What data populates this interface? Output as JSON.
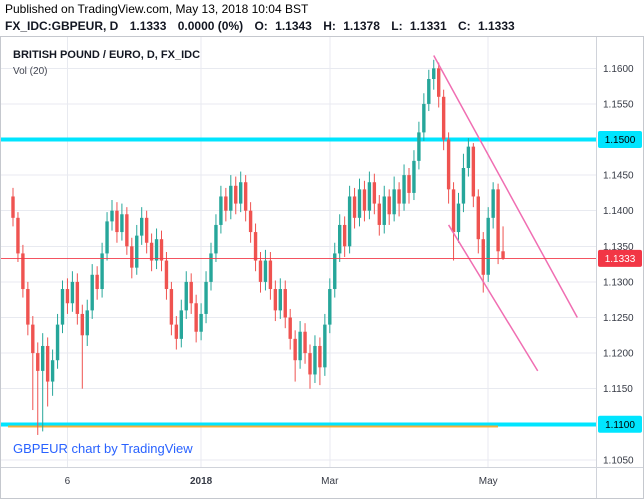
{
  "header": {
    "published": "Published on TradingView.com, May 13, 2018 10:04 BST",
    "symbol_interval": "FX_IDC:GBPEUR, D",
    "last_price": "1.1333",
    "change": "0.0000 (0%)",
    "ohlc": {
      "o_label": "O:",
      "o": "1.1343",
      "h_label": "H:",
      "h": "1.1378",
      "l_label": "L:",
      "l": "1.1331",
      "c_label": "C:",
      "c": "1.1333"
    }
  },
  "legend": {
    "title": "BRITISH POUND / EURO, D, FX_IDC",
    "vol": "Vol (20)"
  },
  "attribution": {
    "text": "GBPEUR chart by TradingView"
  },
  "chart_data": {
    "type": "candlestick",
    "title": "BRITISH POUND / EURO, D, FX_IDC",
    "symbol": "GBPEUR",
    "interval": "D",
    "ylim": [
      1.104,
      1.1644
    ],
    "colors": {
      "up": "#26a69a",
      "down": "#ef5350",
      "grid": "#e8eaf0",
      "axis_line": "#d0d3da",
      "text": "#363a45",
      "band": "#00E5FF",
      "orange_line": "#ffa726",
      "channel": "#f06eb2",
      "price_line": "#f23645",
      "badge_red_bg": "#f23645",
      "badge_red_fg": "#ffffff",
      "badge_cyan_bg": "#00E5FF",
      "badge_cyan_fg": "#000000"
    },
    "y_axis": {
      "ticks": [
        {
          "label": "1.1600",
          "price": 1.16
        },
        {
          "label": "1.1550",
          "price": 1.155
        },
        {
          "label": "1.1500",
          "price": 1.15
        },
        {
          "label": "1.1450",
          "price": 1.145
        },
        {
          "label": "1.1400",
          "price": 1.14
        },
        {
          "label": "1.1350",
          "price": 1.135
        },
        {
          "label": "1.1300",
          "price": 1.13
        },
        {
          "label": "1.1250",
          "price": 1.125
        },
        {
          "label": "1.1200",
          "price": 1.12
        },
        {
          "label": "1.1150",
          "price": 1.115
        },
        {
          "label": "1.1100",
          "price": 1.11
        },
        {
          "label": "1.1050",
          "price": 1.105
        }
      ],
      "badges": [
        {
          "label": "1.1500",
          "price": 1.15,
          "bg": "#00E5FF",
          "fg": "#000000"
        },
        {
          "label": "1.1333",
          "price": 1.1333,
          "bg": "#f23645",
          "fg": "#ffffff"
        },
        {
          "label": "1.1100",
          "price": 1.11,
          "bg": "#00E5FF",
          "fg": "#000000"
        }
      ]
    },
    "x_axis": {
      "ticks": [
        {
          "label": "6",
          "i": 11,
          "bold": false
        },
        {
          "label": "2018",
          "i": 38,
          "bold": true
        },
        {
          "label": "Mar",
          "i": 64,
          "bold": false
        },
        {
          "label": "May",
          "i": 96,
          "bold": false
        }
      ]
    },
    "levels": [
      {
        "name": "resistance-band",
        "price": 1.15,
        "color": "#00E5FF",
        "width": 4,
        "opacity": 1
      },
      {
        "name": "support-band",
        "price": 1.11,
        "color": "#00E5FF",
        "width": 4,
        "opacity": 1
      },
      {
        "name": "orange-support-line",
        "price": 1.1097,
        "color": "#ffa726",
        "width": 2,
        "opacity": 0.9,
        "i1": -1,
        "i2": 98
      }
    ],
    "trend_lines": [
      {
        "name": "channel-upper",
        "i1": 85,
        "p1": 1.1618,
        "i2": 114,
        "p2": 1.125
      },
      {
        "name": "channel-lower",
        "i1": 88,
        "p1": 1.138,
        "i2": 106,
        "p2": 1.1175
      }
    ],
    "price_line": {
      "price": 1.1333
    },
    "candles": [
      [
        1.142,
        1.1432,
        1.1378,
        1.139
      ],
      [
        1.139,
        1.1398,
        1.1328,
        1.134
      ],
      [
        1.134,
        1.1352,
        1.1278,
        1.129
      ],
      [
        1.129,
        1.13,
        1.1225,
        1.124
      ],
      [
        1.124,
        1.1252,
        1.112,
        1.12
      ],
      [
        1.12,
        1.1215,
        1.1085,
        1.1175
      ],
      [
        1.1175,
        1.1228,
        1.109,
        1.121
      ],
      [
        1.121,
        1.1222,
        1.1125,
        1.116
      ],
      [
        1.116,
        1.1205,
        1.114,
        1.119
      ],
      [
        1.119,
        1.1255,
        1.1178,
        1.124
      ],
      [
        1.124,
        1.1302,
        1.1228,
        1.129
      ],
      [
        1.129,
        1.1305,
        1.1255,
        1.127
      ],
      [
        1.127,
        1.1315,
        1.1258,
        1.13
      ],
      [
        1.13,
        1.1312,
        1.124,
        1.1255
      ],
      [
        1.1255,
        1.1268,
        1.115,
        1.1225
      ],
      [
        1.1225,
        1.1275,
        1.121,
        1.126
      ],
      [
        1.126,
        1.1325,
        1.1248,
        1.131
      ],
      [
        1.131,
        1.1322,
        1.1275,
        1.129
      ],
      [
        1.129,
        1.1355,
        1.1278,
        1.134
      ],
      [
        1.134,
        1.1398,
        1.133,
        1.1385
      ],
      [
        1.1385,
        1.1415,
        1.1372,
        1.14
      ],
      [
        1.14,
        1.1412,
        1.1355,
        1.137
      ],
      [
        1.137,
        1.141,
        1.1358,
        1.1395
      ],
      [
        1.1395,
        1.1405,
        1.1338,
        1.135
      ],
      [
        1.135,
        1.1362,
        1.1305,
        1.132
      ],
      [
        1.132,
        1.138,
        1.131,
        1.1365
      ],
      [
        1.1365,
        1.1405,
        1.1352,
        1.139
      ],
      [
        1.139,
        1.14,
        1.134,
        1.1355
      ],
      [
        1.1355,
        1.1368,
        1.1315,
        1.133
      ],
      [
        1.133,
        1.1375,
        1.1318,
        1.136
      ],
      [
        1.136,
        1.1372,
        1.1315,
        1.133
      ],
      [
        1.133,
        1.1342,
        1.1275,
        1.129
      ],
      [
        1.129,
        1.13,
        1.1225,
        1.124
      ],
      [
        1.124,
        1.1252,
        1.1205,
        1.122
      ],
      [
        1.122,
        1.1275,
        1.1208,
        1.126
      ],
      [
        1.126,
        1.1315,
        1.1248,
        1.13
      ],
      [
        1.13,
        1.1312,
        1.1255,
        1.127
      ],
      [
        1.127,
        1.1282,
        1.1215,
        1.123
      ],
      [
        1.123,
        1.127,
        1.1218,
        1.1255
      ],
      [
        1.1255,
        1.1315,
        1.1242,
        1.13
      ],
      [
        1.13,
        1.1355,
        1.1288,
        1.134
      ],
      [
        1.134,
        1.1395,
        1.1328,
        1.138
      ],
      [
        1.138,
        1.1435,
        1.1368,
        1.142
      ],
      [
        1.142,
        1.1432,
        1.1385,
        1.14
      ],
      [
        1.14,
        1.145,
        1.1388,
        1.1435
      ],
      [
        1.1435,
        1.1448,
        1.1395,
        1.141
      ],
      [
        1.141,
        1.1455,
        1.1398,
        1.144
      ],
      [
        1.144,
        1.145,
        1.1385,
        1.14
      ],
      [
        1.14,
        1.1412,
        1.1355,
        1.137
      ],
      [
        1.137,
        1.1382,
        1.1315,
        1.133
      ],
      [
        1.133,
        1.1342,
        1.1285,
        1.13
      ],
      [
        1.13,
        1.1345,
        1.1288,
        1.133
      ],
      [
        1.133,
        1.1342,
        1.1275,
        1.129
      ],
      [
        1.129,
        1.1302,
        1.1245,
        1.126
      ],
      [
        1.126,
        1.1305,
        1.1248,
        1.129
      ],
      [
        1.129,
        1.1302,
        1.1235,
        1.125
      ],
      [
        1.125,
        1.1262,
        1.1205,
        1.122
      ],
      [
        1.122,
        1.1232,
        1.116,
        1.119
      ],
      [
        1.119,
        1.1245,
        1.1178,
        1.123
      ],
      [
        1.123,
        1.1242,
        1.1185,
        1.12
      ],
      [
        1.12,
        1.1212,
        1.115,
        1.117
      ],
      [
        1.117,
        1.1225,
        1.1158,
        1.121
      ],
      [
        1.121,
        1.1222,
        1.1155,
        1.118
      ],
      [
        1.118,
        1.1255,
        1.1168,
        1.124
      ],
      [
        1.124,
        1.1305,
        1.1228,
        1.129
      ],
      [
        1.129,
        1.1355,
        1.1278,
        1.134
      ],
      [
        1.134,
        1.1395,
        1.1328,
        1.138
      ],
      [
        1.138,
        1.1392,
        1.1335,
        1.135
      ],
      [
        1.135,
        1.1435,
        1.134,
        1.142
      ],
      [
        1.142,
        1.1432,
        1.1375,
        1.139
      ],
      [
        1.139,
        1.1445,
        1.1378,
        1.143
      ],
      [
        1.143,
        1.1442,
        1.1385,
        1.14
      ],
      [
        1.14,
        1.1455,
        1.1388,
        1.144
      ],
      [
        1.144,
        1.1452,
        1.1395,
        1.141
      ],
      [
        1.141,
        1.1422,
        1.1365,
        1.138
      ],
      [
        1.138,
        1.1435,
        1.1368,
        1.142
      ],
      [
        1.142,
        1.143,
        1.138,
        1.1395
      ],
      [
        1.1395,
        1.1448,
        1.1385,
        1.143
      ],
      [
        1.143,
        1.144,
        1.1392,
        1.141
      ],
      [
        1.141,
        1.1465,
        1.14,
        1.145
      ],
      [
        1.145,
        1.146,
        1.141,
        1.1425
      ],
      [
        1.1425,
        1.1485,
        1.1415,
        1.147
      ],
      [
        1.147,
        1.1525,
        1.1458,
        1.151
      ],
      [
        1.151,
        1.1565,
        1.1498,
        1.155
      ],
      [
        1.155,
        1.1598,
        1.154,
        1.1585
      ],
      [
        1.1585,
        1.1612,
        1.157,
        1.16
      ],
      [
        1.16,
        1.1608,
        1.1545,
        1.156
      ],
      [
        1.156,
        1.157,
        1.1485,
        1.15
      ],
      [
        1.15,
        1.151,
        1.141,
        1.143
      ],
      [
        1.143,
        1.144,
        1.133,
        1.137
      ],
      [
        1.137,
        1.1425,
        1.1355,
        1.141
      ],
      [
        1.141,
        1.148,
        1.1398,
        1.146
      ],
      [
        1.146,
        1.1502,
        1.1448,
        1.149
      ],
      [
        1.149,
        1.1495,
        1.1405,
        1.142
      ],
      [
        1.142,
        1.143,
        1.134,
        1.136
      ],
      [
        1.136,
        1.137,
        1.1285,
        1.131
      ],
      [
        1.131,
        1.1405,
        1.13,
        1.139
      ],
      [
        1.139,
        1.144,
        1.1375,
        1.143
      ],
      [
        1.143,
        1.1438,
        1.1325,
        1.1343
      ],
      [
        1.1343,
        1.1378,
        1.1331,
        1.1333
      ]
    ]
  }
}
